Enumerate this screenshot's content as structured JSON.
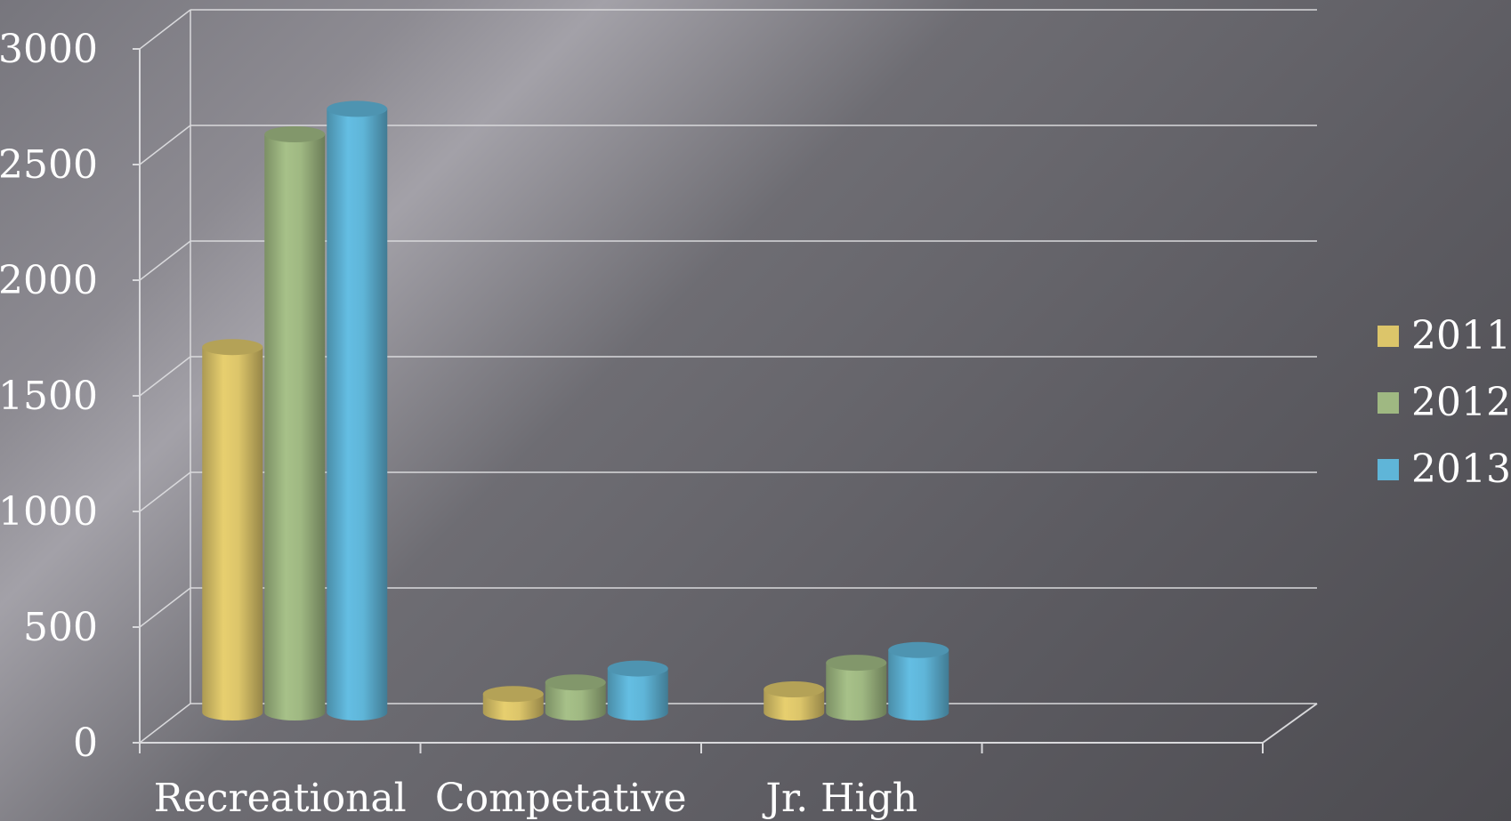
{
  "chart_data": {
    "type": "bar",
    "style": "3d-cylinder",
    "categories": [
      "Recreational",
      "Competative",
      "Jr. High",
      ""
    ],
    "series": [
      {
        "name": "2011",
        "values": [
          1580,
          80,
          100,
          null
        ],
        "color": "#dcc56a"
      },
      {
        "name": "2012",
        "values": [
          2500,
          130,
          215,
          null
        ],
        "color": "#9fb882"
      },
      {
        "name": "2013",
        "values": [
          2610,
          190,
          270,
          null
        ],
        "color": "#5fb5d8"
      }
    ],
    "yticks": [
      "0",
      "500",
      "1000",
      "1500",
      "2000",
      "2500",
      "3000"
    ],
    "ylim": [
      0,
      3000
    ],
    "grid": true,
    "legend_position": "right"
  }
}
